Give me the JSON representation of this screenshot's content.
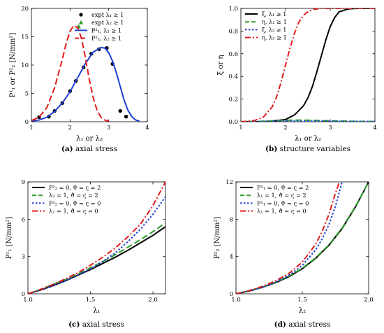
{
  "chart_data": [
    {
      "id": "a",
      "type": "line",
      "caption_letter": "(a)",
      "caption_text": " axial stress",
      "xlabel": "λ₁ or λ₂",
      "ylabel": "P¹₁ or P²₂ [N/mm²]",
      "xlim": [
        1,
        4
      ],
      "ylim": [
        0,
        20
      ],
      "xticks": [
        1,
        2,
        3,
        4
      ],
      "xtick_labels": [
        "1",
        "2",
        "3",
        "4"
      ],
      "yticks": [
        0,
        5,
        10,
        15,
        20
      ],
      "ytick_labels": [
        "0",
        "5",
        "10",
        "15",
        "20"
      ],
      "legend_position": "top-right",
      "series": [
        {
          "name": "expt λ₁ ≥ 1",
          "kind": "marker",
          "marker": "circle",
          "color": "#000000",
          "x": [
            1.2,
            1.45,
            1.6,
            1.8,
            2.0,
            2.15,
            2.35,
            2.55,
            2.75,
            2.95,
            3.1,
            3.3,
            3.45
          ],
          "y": [
            0.8,
            0.9,
            1.9,
            3.3,
            5.4,
            7.2,
            9.6,
            12.0,
            12.8,
            13.0,
            10.2,
            1.9,
            0.9
          ]
        },
        {
          "name": "expt λ₂ ≥ 1",
          "kind": "marker",
          "marker": "triangle",
          "color": "#2ca02c",
          "x": [
            2.22
          ],
          "y": [
            16.8
          ]
        },
        {
          "name": "P¹₁, λ₁ ≥ 1",
          "kind": "line",
          "style": "solid",
          "color": "#1f3fd6",
          "x": [
            1.0,
            1.2,
            1.4,
            1.6,
            1.8,
            2.0,
            2.2,
            2.4,
            2.6,
            2.8,
            2.9,
            3.0,
            3.1,
            3.2,
            3.3,
            3.4,
            3.5,
            3.6,
            3.7,
            3.8
          ],
          "y": [
            0.1,
            0.3,
            0.8,
            1.8,
            3.3,
            5.3,
            7.8,
            10.3,
            12.3,
            13.1,
            13.0,
            12.2,
            10.7,
            8.6,
            6.2,
            3.8,
            2.0,
            0.9,
            0.3,
            0.1
          ]
        },
        {
          "name": "P²₂, λ₂ ≥ 1",
          "kind": "line",
          "style": "dashed",
          "color": "#e31a1c",
          "x": [
            1.0,
            1.2,
            1.4,
            1.6,
            1.8,
            1.9,
            2.0,
            2.1,
            2.2,
            2.3,
            2.4,
            2.5,
            2.6,
            2.7,
            2.8,
            2.9,
            3.0
          ],
          "y": [
            0.2,
            0.8,
            2.5,
            6.0,
            11.0,
            13.8,
            16.0,
            17.0,
            16.6,
            14.6,
            11.2,
            7.4,
            4.2,
            2.0,
            0.8,
            0.3,
            0.1
          ]
        }
      ]
    },
    {
      "id": "b",
      "type": "line",
      "caption_letter": "(b)",
      "caption_text": " structure variables",
      "xlabel": "λ₁ or λ₂",
      "ylabel": "ξ or η",
      "xlim": [
        1,
        4
      ],
      "ylim": [
        0,
        1
      ],
      "xticks": [
        1,
        2,
        3,
        4
      ],
      "xtick_labels": [
        "1",
        "2",
        "3",
        "4"
      ],
      "yticks": [
        0,
        0.2,
        0.4,
        0.6,
        0.8,
        1.0
      ],
      "ytick_labels": [
        "0.0",
        "0.2",
        "0.4",
        "0.6",
        "0.8",
        "1.0"
      ],
      "legend_position": "top-left",
      "series": [
        {
          "name": "ξ, λ₁ ≥ 1",
          "kind": "line",
          "style": "solid",
          "color": "#000000",
          "x": [
            1.0,
            1.5,
            1.8,
            2.0,
            2.2,
            2.4,
            2.5,
            2.6,
            2.7,
            2.8,
            2.9,
            3.0,
            3.1,
            3.2,
            3.4,
            3.6,
            4.0
          ],
          "y": [
            0.0,
            0.0,
            0.01,
            0.02,
            0.06,
            0.14,
            0.21,
            0.31,
            0.44,
            0.58,
            0.72,
            0.84,
            0.92,
            0.97,
            0.995,
            1.0,
            1.0
          ]
        },
        {
          "name": "η, λ₁ ≥ 1",
          "kind": "line",
          "style": "dashed",
          "color": "#2ca02c",
          "x": [
            1.0,
            1.5,
            2.0,
            2.3,
            2.6,
            3.0,
            3.5,
            4.0
          ],
          "y": [
            0.0,
            0.005,
            0.012,
            0.015,
            0.013,
            0.008,
            0.004,
            0.002
          ]
        },
        {
          "name": "ξ, λ₂ ≥ 1",
          "kind": "line",
          "style": "dotted",
          "color": "#1f3fd6",
          "x": [
            1.0,
            1.5,
            2.0,
            2.5,
            3.0,
            3.5,
            4.0
          ],
          "y": [
            0.0,
            0.002,
            0.004,
            0.005,
            0.004,
            0.003,
            0.002
          ]
        },
        {
          "name": "η, λ₂ ≥ 1",
          "kind": "line",
          "style": "dashdot",
          "color": "#e31a1c",
          "x": [
            1.0,
            1.3,
            1.5,
            1.7,
            1.8,
            1.9,
            2.0,
            2.1,
            2.2,
            2.3,
            2.4,
            2.5,
            2.6,
            2.7,
            2.8,
            3.0,
            3.2,
            4.0
          ],
          "y": [
            0.0,
            0.01,
            0.04,
            0.13,
            0.22,
            0.35,
            0.5,
            0.65,
            0.78,
            0.88,
            0.94,
            0.97,
            0.99,
            0.995,
            1.0,
            1.0,
            1.0,
            1.0
          ]
        }
      ]
    },
    {
      "id": "c",
      "type": "line",
      "caption_letter": "(c)",
      "caption_text": " axial stress",
      "xlabel": "λ₁",
      "ylabel": "P¹₁ [N/mm²]",
      "xlim": [
        1.0,
        2.1
      ],
      "ylim": [
        0,
        9
      ],
      "xticks": [
        1.0,
        1.5,
        2.0
      ],
      "xtick_labels": [
        "1.0",
        "1.5",
        "2.0"
      ],
      "yticks": [
        0,
        3,
        6,
        9
      ],
      "ytick_labels": [
        "0",
        "3",
        "6",
        "9"
      ],
      "legend_position": "top-left",
      "series": [
        {
          "name": "P²₂ = 0, ϑ = ς = 2",
          "kind": "line",
          "style": "solid",
          "color": "#000000",
          "x": [
            1.0,
            1.1,
            1.2,
            1.3,
            1.4,
            1.5,
            1.6,
            1.7,
            1.8,
            1.9,
            2.0,
            2.1
          ],
          "y": [
            0.0,
            0.3,
            0.65,
            1.05,
            1.5,
            1.95,
            2.45,
            2.95,
            3.5,
            4.1,
            4.7,
            5.4
          ]
        },
        {
          "name": "λ₂ = 1, ϑ = ς = 2",
          "kind": "line",
          "style": "dashed",
          "color": "#2ca02c",
          "x": [
            1.0,
            1.1,
            1.2,
            1.3,
            1.4,
            1.5,
            1.6,
            1.7,
            1.8,
            1.9,
            2.0,
            2.1
          ],
          "y": [
            0.0,
            0.35,
            0.75,
            1.15,
            1.6,
            2.1,
            2.6,
            3.15,
            3.75,
            4.35,
            5.0,
            5.7
          ]
        },
        {
          "name": "P²₂ = 0, ϑ = ς = 0",
          "kind": "line",
          "style": "dotted",
          "color": "#1f3fd6",
          "x": [
            1.0,
            1.1,
            1.2,
            1.3,
            1.4,
            1.5,
            1.6,
            1.7,
            1.8,
            1.9,
            2.0,
            2.1
          ],
          "y": [
            0.0,
            0.3,
            0.65,
            1.05,
            1.5,
            2.0,
            2.6,
            3.3,
            4.2,
            5.2,
            6.4,
            7.8
          ]
        },
        {
          "name": "λ₂ = 1, ϑ = ς = 0",
          "kind": "line",
          "style": "dashdot",
          "color": "#e31a1c",
          "x": [
            1.0,
            1.1,
            1.2,
            1.3,
            1.4,
            1.5,
            1.6,
            1.7,
            1.8,
            1.9,
            2.0,
            2.1
          ],
          "y": [
            0.0,
            0.35,
            0.75,
            1.2,
            1.7,
            2.3,
            2.95,
            3.7,
            4.6,
            5.6,
            7.1,
            9.0
          ]
        }
      ]
    },
    {
      "id": "d",
      "type": "line",
      "caption_letter": "(d)",
      "caption_text": " axial stress",
      "xlabel": "λ₂",
      "ylabel": "P²₂ [N/mm²]",
      "xlim": [
        1.0,
        2.0
      ],
      "ylim": [
        0,
        12
      ],
      "xticks": [
        1.0,
        1.5,
        2.0
      ],
      "xtick_labels": [
        "1.0",
        "1.5",
        "2.0"
      ],
      "yticks": [
        0,
        4,
        8,
        12
      ],
      "ytick_labels": [
        "0",
        "4",
        "8",
        "12"
      ],
      "legend_position": "top-left",
      "series": [
        {
          "name": "P¹₁ = 0, ϑ = ς = 2",
          "kind": "line",
          "style": "solid",
          "color": "#000000",
          "x": [
            1.0,
            1.1,
            1.2,
            1.3,
            1.4,
            1.5,
            1.6,
            1.7,
            1.8,
            1.9,
            2.0
          ],
          "y": [
            0.0,
            0.3,
            0.7,
            1.2,
            1.85,
            2.7,
            3.8,
            5.2,
            7.0,
            9.3,
            12.0
          ]
        },
        {
          "name": "λ₁ = 1, ϑ = ς = 2",
          "kind": "line",
          "style": "dashed",
          "color": "#2ca02c",
          "x": [
            1.0,
            1.1,
            1.2,
            1.3,
            1.4,
            1.5,
            1.6,
            1.7,
            1.8,
            1.9,
            2.0
          ],
          "y": [
            0.0,
            0.32,
            0.72,
            1.25,
            1.9,
            2.75,
            3.85,
            5.25,
            7.05,
            9.35,
            12.0
          ]
        },
        {
          "name": "P¹₁ = 0, ϑ = ς = 0",
          "kind": "line",
          "style": "dotted",
          "color": "#1f3fd6",
          "x": [
            1.0,
            1.1,
            1.2,
            1.3,
            1.4,
            1.5,
            1.6,
            1.65,
            1.7,
            1.75,
            1.8
          ],
          "y": [
            0.0,
            0.3,
            0.7,
            1.25,
            2.0,
            3.05,
            4.7,
            5.9,
            7.4,
            9.4,
            12.0
          ]
        },
        {
          "name": "λ₁ = 1, ϑ = ς = 0",
          "kind": "line",
          "style": "dashdot",
          "color": "#e31a1c",
          "x": [
            1.0,
            1.1,
            1.2,
            1.3,
            1.4,
            1.5,
            1.6,
            1.65,
            1.7,
            1.75,
            1.78
          ],
          "y": [
            0.0,
            0.35,
            0.8,
            1.4,
            2.2,
            3.4,
            5.3,
            6.7,
            8.5,
            10.8,
            12.0
          ]
        }
      ]
    }
  ]
}
